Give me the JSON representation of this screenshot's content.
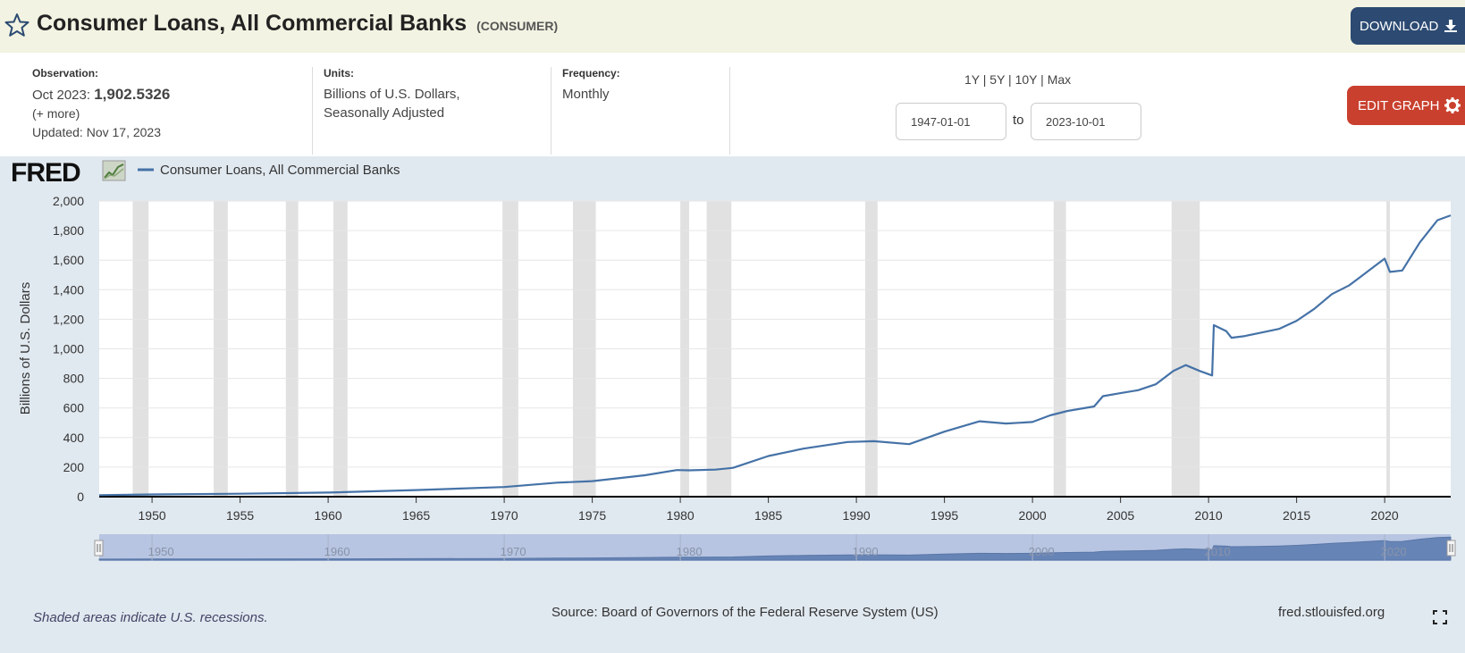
{
  "header": {
    "title": "Consumer Loans, All Commercial Banks",
    "series_id": "(CONSUMER)",
    "download_label": "DOWNLOAD"
  },
  "info": {
    "observation_label": "Observation:",
    "observation_date": "Oct 2023:",
    "observation_value": "1,902.5326",
    "more": "(+ more)",
    "updated": "Updated: Nov 17, 2023",
    "units_label": "Units:",
    "units_line1": "Billions of U.S. Dollars,",
    "units_line2": "Seasonally Adjusted",
    "frequency_label": "Frequency:",
    "frequency_value": "Monthly"
  },
  "range": {
    "links": [
      "1Y",
      "5Y",
      "10Y",
      "Max"
    ],
    "start": "1947-01-01",
    "end": "2023-10-01",
    "to_label": "to"
  },
  "edit_label": "EDIT GRAPH",
  "footer": {
    "note": "Shaded areas indicate U.S. recessions.",
    "source": "Source: Board of Governors of the Federal Reserve System (US)",
    "site": "fred.stlouisfed.org"
  },
  "colors": {
    "line": "#4572a7",
    "recession": "#e1e1e1",
    "title_bg": "#f2f3e2",
    "graph_bg": "#e1e9f0"
  },
  "chart_data": {
    "type": "line",
    "legend": "Consumer Loans, All Commercial Banks",
    "ylabel": "Billions of U.S. Dollars",
    "ylim": [
      0,
      2000
    ],
    "yticks": [
      "0",
      "200",
      "400",
      "600",
      "800",
      "1,000",
      "1,200",
      "1,400",
      "1,600",
      "1,800",
      "2,000"
    ],
    "xlim": [
      1947.0,
      2023.75
    ],
    "xticks": [
      "1950",
      "1955",
      "1960",
      "1965",
      "1970",
      "1975",
      "1980",
      "1985",
      "1990",
      "1995",
      "2000",
      "2005",
      "2010",
      "2015",
      "2020"
    ],
    "navigator_ticks": [
      "1950",
      "1960",
      "1970",
      "1980",
      "1990",
      "2000",
      "2010",
      "2020"
    ],
    "grid": true,
    "recessions": [
      [
        1948.9,
        1949.8
      ],
      [
        1953.5,
        1954.3
      ],
      [
        1957.6,
        1958.3
      ],
      [
        1960.3,
        1961.1
      ],
      [
        1969.9,
        1970.8
      ],
      [
        1973.9,
        1975.2
      ],
      [
        1980.0,
        1980.5
      ],
      [
        1981.5,
        1982.9
      ],
      [
        1990.5,
        1991.2
      ],
      [
        2001.2,
        2001.9
      ],
      [
        2007.9,
        2009.5
      ],
      [
        2020.1,
        2020.3
      ]
    ],
    "series": [
      {
        "name": "Consumer Loans, All Commercial Banks",
        "x": [
          1947.0,
          1950.0,
          1955.0,
          1960.0,
          1965.0,
          1970.0,
          1973.0,
          1975.0,
          1978.0,
          1979.8,
          1980.5,
          1982.0,
          1983.0,
          1985.0,
          1987.0,
          1989.5,
          1991.0,
          1993.0,
          1995.0,
          1997.0,
          1998.5,
          2000.0,
          2001.0,
          2002.0,
          2003.5,
          2004.0,
          2005.0,
          2006.0,
          2007.0,
          2008.0,
          2008.7,
          2009.5,
          2010.2,
          2010.3,
          2011.0,
          2011.3,
          2012.0,
          2013.0,
          2014.0,
          2015.0,
          2016.0,
          2017.0,
          2018.0,
          2019.0,
          2020.0,
          2020.3,
          2021.0,
          2022.0,
          2023.0,
          2023.75
        ],
        "values": [
          10,
          15,
          20,
          28,
          45,
          65,
          95,
          105,
          145,
          180,
          178,
          183,
          195,
          275,
          325,
          370,
          375,
          355,
          440,
          510,
          495,
          505,
          550,
          580,
          610,
          680,
          700,
          720,
          760,
          850,
          890,
          850,
          820,
          1160,
          1120,
          1075,
          1085,
          1110,
          1135,
          1190,
          1270,
          1370,
          1430,
          1520,
          1610,
          1520,
          1530,
          1720,
          1870,
          1902.5
        ]
      }
    ]
  }
}
